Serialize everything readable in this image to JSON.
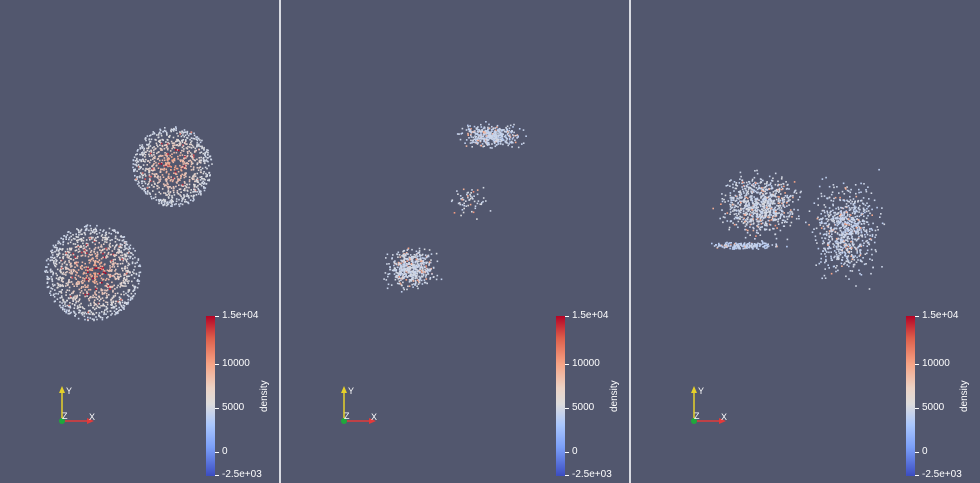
{
  "colorbar": {
    "title": "density",
    "labels": [
      "1.5e+04",
      "10000",
      "5000",
      "0",
      "-2.5e+03"
    ],
    "range": [
      -2500,
      15000
    ],
    "colormap": [
      "#3b4cc0",
      "#dddcdc",
      "#b40426"
    ]
  },
  "axes": {
    "x": "X",
    "y": "Y",
    "z": "Z",
    "x_color": "#e23a3a",
    "y_color": "#e6d12a",
    "z_color": "#1fa83c"
  },
  "background": "#52576e",
  "views": [
    {
      "name": "view-1"
    },
    {
      "name": "view-2"
    },
    {
      "name": "view-3"
    }
  ]
}
